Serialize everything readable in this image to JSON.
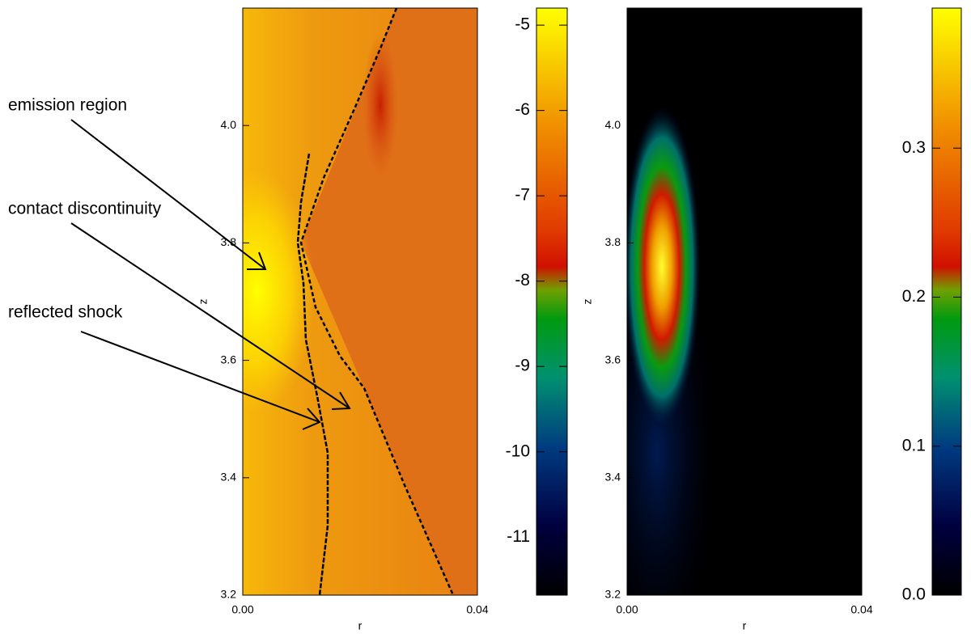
{
  "chart_data": [
    {
      "type": "heatmap",
      "xlabel": "r",
      "ylabel": "z",
      "xlim": [
        0,
        0.04
      ],
      "ylim": [
        3.2,
        4.2
      ],
      "xticks": [
        {
          "value": 0,
          "label": "0.00"
        },
        {
          "value": 0.04,
          "label": "0.04"
        }
      ],
      "yticks": [
        3.2,
        3.4,
        3.6,
        3.8,
        {
          "value": 4.0,
          "label": "4.0"
        }
      ],
      "colorbar": {
        "lim": [
          -11.68,
          -4.8
        ],
        "ticks": [
          -11,
          -10,
          -9,
          -8,
          -7,
          -6,
          -5
        ]
      },
      "annotations": [
        "emission region",
        "contact discontinuity",
        "reflected shock"
      ]
    },
    {
      "type": "heatmap",
      "xlabel": "r",
      "ylabel": "z",
      "xlim": [
        0,
        0.04
      ],
      "ylim": [
        3.2,
        4.2
      ],
      "xticks": [
        {
          "value": 0,
          "label": "0.00"
        },
        {
          "value": 0.04,
          "label": "0.04"
        }
      ],
      "yticks": [
        3.2,
        3.4,
        3.6,
        3.8,
        {
          "value": 4.0,
          "label": "4.0"
        }
      ],
      "colorbar": {
        "lim": [
          0,
          0.394
        ],
        "ticks": [
          {
            "value": 0,
            "label": "0.0"
          },
          0.1,
          0.2,
          0.3
        ]
      }
    }
  ]
}
